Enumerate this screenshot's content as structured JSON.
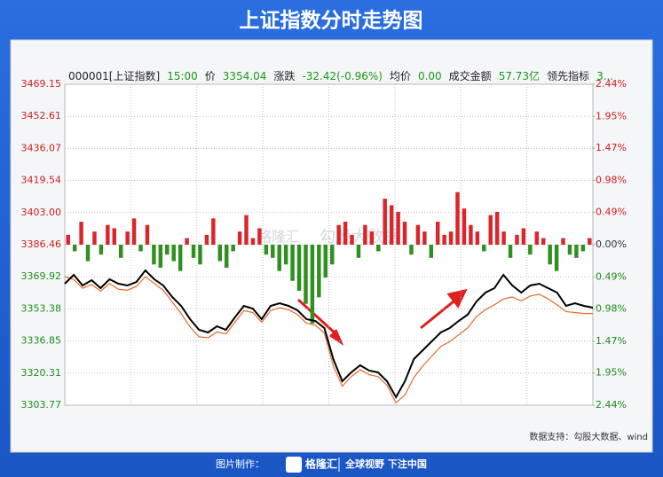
{
  "chart_data": {
    "type": "line",
    "title": "上证指数分时走势图",
    "header_items": [
      {
        "text": "000001[上证指数]",
        "color": "#222222"
      },
      {
        "text": "15:00",
        "color": "#1a9a1a"
      },
      {
        "text": "价",
        "color": "#222222"
      },
      {
        "text": "3354.04",
        "color": "#1a9a1a"
      },
      {
        "text": "涨跌",
        "color": "#222222"
      },
      {
        "text": "-32.42(-0.96%)",
        "color": "#1a9a1a"
      },
      {
        "text": "均价",
        "color": "#222222"
      },
      {
        "text": "0.00",
        "color": "#1a9a1a"
      },
      {
        "text": "成交金额",
        "color": "#222222"
      },
      {
        "text": "57.73亿",
        "color": "#1a9a1a"
      },
      {
        "text": "领先指标",
        "color": "#222222"
      },
      {
        "text": "3...",
        "color": "#1a9a1a"
      }
    ],
    "ylim": [
      3303.77,
      3469.15
    ],
    "yticks": [
      3303.77,
      3320.31,
      3336.85,
      3353.38,
      3369.92,
      3386.46,
      {
        "value": 3403,
        "label": "3403.00"
      },
      3419.54,
      3436.07,
      3452.61,
      3469.15
    ],
    "y2lim": [
      -2.44,
      2.44
    ],
    "y2ticks": [
      {
        "value": -2.44,
        "label": "2.44%"
      },
      {
        "value": -1.95,
        "label": "1.95%"
      },
      {
        "value": -1.47,
        "label": "1.47%"
      },
      {
        "value": -0.98,
        "label": "0.98%"
      },
      {
        "value": -0.49,
        "label": "0.49%"
      },
      {
        "value": 0,
        "label": "0.00%"
      },
      {
        "value": 0.49,
        "label": "0.49%"
      },
      {
        "value": 0.98,
        "label": "0.98%"
      },
      {
        "value": 1.47,
        "label": "1.47%"
      },
      {
        "value": 1.95,
        "label": "1.95%"
      },
      {
        "value": 2.44,
        "label": "2.44%"
      }
    ],
    "up_color": "#cc1f1f",
    "down_color": "#1f8a1f",
    "grid": true,
    "series": [
      {
        "type": "bar",
        "axis": "y2",
        "up_color": "#d9262c",
        "down_color": "#2f8f1f",
        "values": [
          0.15,
          -0.1,
          0.35,
          -0.25,
          0.2,
          -0.15,
          0.3,
          0.25,
          -0.2,
          0.2,
          0.4,
          -0.1,
          0.3,
          -0.3,
          -0.35,
          -0.15,
          -0.25,
          -0.4,
          0.1,
          -0.2,
          -0.3,
          0.15,
          0.4,
          -0.25,
          -0.35,
          -0.1,
          0.2,
          0.45,
          0.1,
          0.25,
          -0.15,
          -0.2,
          -0.4,
          -0.3,
          -0.55,
          -0.7,
          -0.9,
          -1.2,
          -0.8,
          -0.5,
          -0.3,
          0.3,
          0.35,
          0.15,
          -0.2,
          0.3,
          0.2,
          -0.1,
          0.7,
          0.6,
          0.5,
          0.35,
          -0.15,
          0.3,
          0.2,
          -0.2,
          0.35,
          0.15,
          0.2,
          0.8,
          0.55,
          0.3,
          0.2,
          -0.1,
          0.45,
          0.5,
          0.2,
          -0.2,
          0.15,
          0.25,
          -0.15,
          0.2,
          0.1,
          -0.3,
          -0.4,
          0.1,
          -0.15,
          -0.2,
          -0.1,
          0.1
        ]
      },
      {
        "type": "line",
        "color": "#e8692b",
        "values": [
          3370,
          3368.5,
          3364,
          3366,
          3362.5,
          3366.5,
          3363.5,
          3363,
          3365,
          3370,
          3366.5,
          3363,
          3357,
          3351,
          3344,
          3339,
          3338.5,
          3341.5,
          3340.5,
          3346.5,
          3352.5,
          3351.5,
          3346.5,
          3352.5,
          3354,
          3353,
          3350.5,
          3346,
          3345,
          3341,
          3324,
          3313.5,
          3318.5,
          3322,
          3319.5,
          3318.5,
          3314,
          3305,
          3309,
          3318,
          3324,
          3329,
          3334,
          3336.5,
          3340,
          3343.5,
          3349.5,
          3353,
          3355.5,
          3358.5,
          3359.5,
          3357.5,
          3360,
          3361,
          3358.5,
          3355.5,
          3352,
          3351.5,
          3351,
          3351
        ]
      },
      {
        "type": "line",
        "color": "#000000",
        "values": [
          3366.36,
          3370.93,
          3365.45,
          3368.19,
          3364.07,
          3368.64,
          3366.36,
          3365.45,
          3367.27,
          3373.21,
          3368.64,
          3365.45,
          3359.51,
          3354.94,
          3348.08,
          3342.6,
          3341.23,
          3344.43,
          3342.6,
          3349,
          3354.94,
          3353.57,
          3348.08,
          3354.94,
          3356.31,
          3354.94,
          3352.65,
          3348.08,
          3347.17,
          3343.52,
          3327.53,
          3316.11,
          3320.67,
          3324.33,
          3321.59,
          3320.67,
          3316.11,
          3307.88,
          3316.11,
          3327.53,
          3332.09,
          3336.66,
          3341.23,
          3343.52,
          3347.17,
          3350.37,
          3357.22,
          3361.79,
          3364.07,
          3370.93,
          3365.45,
          3361.79,
          3365.45,
          3366.36,
          3364.07,
          3361.79,
          3354.94,
          3356.31,
          3354.94,
          3354.04
        ]
      }
    ],
    "watermark": [
      "格隆汇",
      "勾股大数据"
    ],
    "source": "数据支持：勾股大数据、wind",
    "footer": [
      "图片制作：",
      "格隆汇",
      "全球视野 下注中国"
    ]
  }
}
